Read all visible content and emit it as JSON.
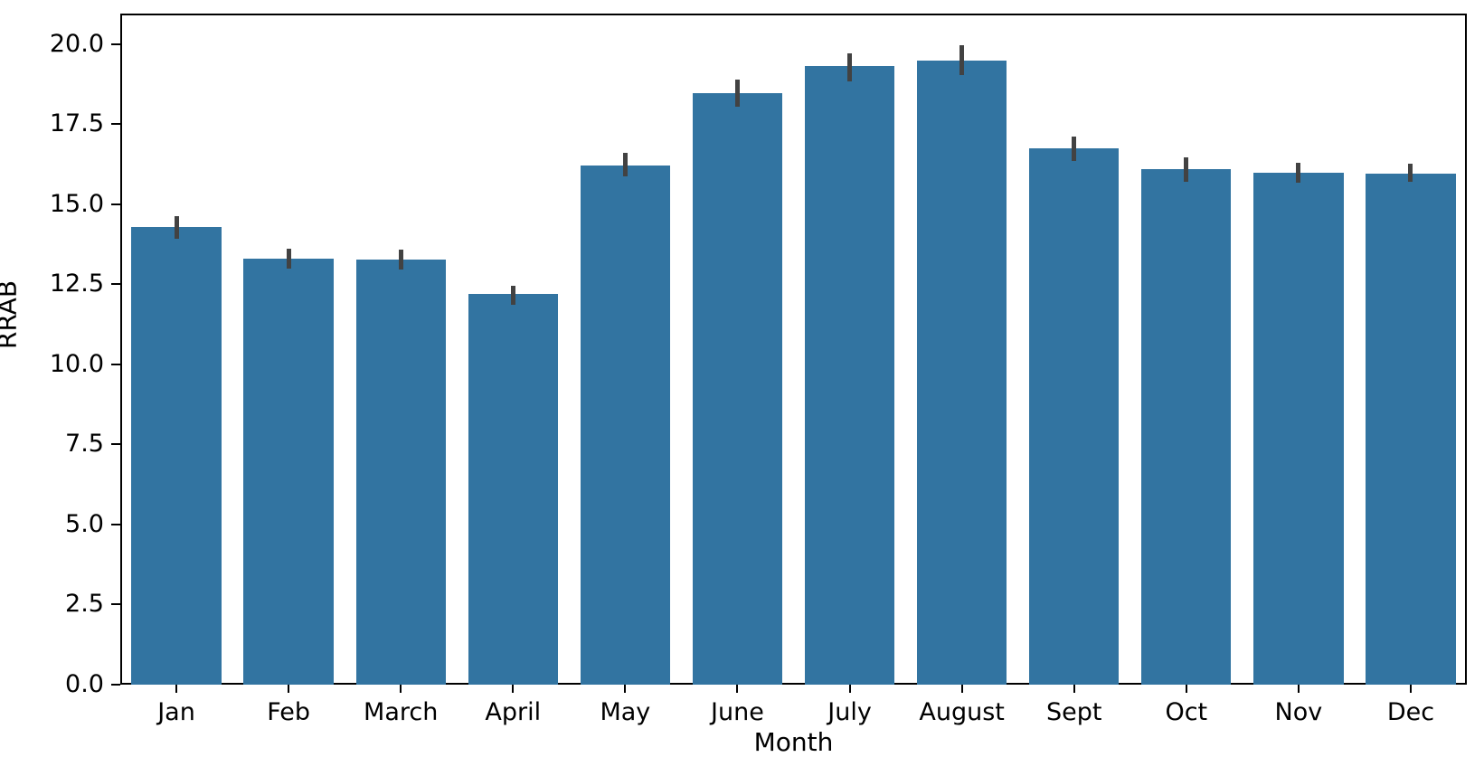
{
  "chart_data": {
    "type": "bar",
    "title": "",
    "xlabel": "Month",
    "ylabel": "RRAB",
    "categories": [
      "Jan",
      "Feb",
      "March",
      "April",
      "May",
      "June",
      "July",
      "August",
      "Sept",
      "Oct",
      "Nov",
      "Dec"
    ],
    "values": [
      14.28,
      13.3,
      13.26,
      12.19,
      16.21,
      18.47,
      19.3,
      19.49,
      16.74,
      16.09,
      15.98,
      15.95
    ],
    "error_low": [
      13.93,
      12.99,
      12.95,
      11.87,
      15.86,
      18.04,
      18.82,
      19.02,
      16.35,
      15.7,
      15.67,
      15.69
    ],
    "error_high": [
      14.62,
      13.6,
      13.59,
      12.45,
      16.61,
      18.88,
      19.71,
      19.96,
      17.11,
      16.46,
      16.28,
      16.26
    ],
    "ytick_values": [
      0,
      2.5,
      5,
      7.5,
      10,
      12.5,
      15,
      17.5,
      20
    ],
    "ytick_labels": [
      "0.0",
      "2.5",
      "5.0",
      "7.5",
      "10.0",
      "12.5",
      "15.0",
      "17.5",
      "20.0"
    ],
    "ylim": [
      0,
      20.95
    ],
    "grid": false,
    "legend": null,
    "bar_color": "#3274a1",
    "error_bar_color": "#424242"
  }
}
